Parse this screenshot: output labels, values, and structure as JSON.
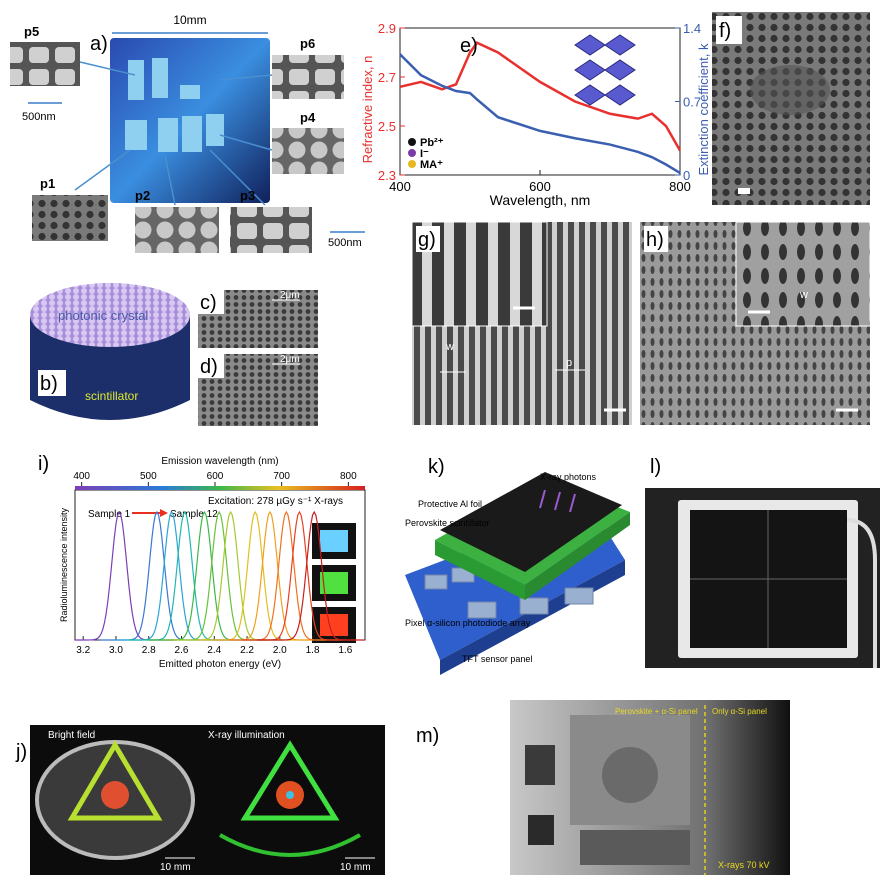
{
  "figure": {
    "a": {
      "label": "a)",
      "size": "10mm",
      "insets": [
        "p5",
        "p6",
        "p4",
        "p1",
        "p2",
        "p3"
      ],
      "scale_left": "500nm",
      "scale_right": "500nm"
    },
    "b": {
      "label": "b)",
      "top": "photonic crystal",
      "bottom": "scintillator"
    },
    "c": {
      "label": "c)",
      "scale": "2μm"
    },
    "d": {
      "label": "d)",
      "scale": "2μm"
    },
    "f": {
      "label": "f)"
    },
    "g": {
      "label": "g)",
      "marks": [
        "w",
        "p"
      ]
    },
    "h": {
      "label": "h)",
      "marks": [
        "w"
      ]
    },
    "j": {
      "label": "j)",
      "left": "Bright field",
      "right": "X-ray illumination",
      "scale_left": "10 mm",
      "scale_right": "10 mm"
    },
    "k": {
      "label": "k)",
      "photons": "X-ray photons",
      "foil": "Protective Al foil",
      "scintillator": "Perovskite scintillator",
      "array": "Pixel α-silicon photodiode array",
      "panel": "TFT sensor panel"
    },
    "l": {
      "label": "l)"
    },
    "m": {
      "label": "m)",
      "left": "Perovskite + α-Si panel",
      "right": "Only α-Si panel",
      "source": "X-rays 70 kV"
    }
  },
  "chart_data": [
    {
      "type": "line",
      "label": "e)",
      "xlabel": "Wavelength, nm",
      "ylabel": "Refractive index, n",
      "y2label": "Extinction coefficient, k",
      "x": [
        400,
        430,
        460,
        480,
        500,
        510,
        540,
        600,
        650,
        700,
        740,
        760,
        780,
        800
      ],
      "xlim": [
        400,
        800
      ],
      "xticks": [
        400,
        600,
        800
      ],
      "ylim": [
        2.3,
        2.9
      ],
      "yticks": [
        2.3,
        2.5,
        2.7,
        2.9
      ],
      "y2lim": [
        0,
        1.4
      ],
      "y2ticks": [
        0,
        0.7,
        1.4
      ],
      "series": [
        {
          "color": "#e8302f",
          "values": [
            2.66,
            2.68,
            2.65,
            2.67,
            2.8,
            2.84,
            2.8,
            2.68,
            2.6,
            2.55,
            2.53,
            2.55,
            2.5,
            2.4
          ]
        },
        {
          "color": "#3a5fb0",
          "axis": "y2",
          "values": [
            1.15,
            0.95,
            0.85,
            0.8,
            0.78,
            0.72,
            0.55,
            0.42,
            0.35,
            0.29,
            0.22,
            0.17,
            0.1,
            0.02
          ]
        }
      ],
      "legend": [
        {
          "label": "Pb²⁺",
          "color": "#111111"
        },
        {
          "label": "I⁻",
          "color": "#7a3aa8"
        },
        {
          "label": "MA⁺",
          "color": "#e8b820"
        }
      ]
    },
    {
      "type": "spectra",
      "label": "i)",
      "xlabel": "Emitted photon energy (eV)",
      "ylabel": "Radioluminescence intensity",
      "x2label": "Emission wavelength (nm)",
      "xlim": [
        3.25,
        1.48
      ],
      "xticks": [
        3.2,
        {
          "value": 3.0,
          "label": "3.0"
        },
        2.8,
        2.6,
        2.4,
        2.2,
        {
          "value": 2.0,
          "label": "2.0"
        },
        1.8,
        1.6
      ],
      "x2lim": [
        390,
        825
      ],
      "x2ticks": [
        400,
        500,
        600,
        700,
        800
      ],
      "annotation": "Excitation: 278 µGy s⁻¹ X-rays",
      "start": "Sample 1",
      "end": "Sample 12",
      "peaks": [
        2.98,
        2.75,
        2.66,
        2.58,
        2.46,
        2.37,
        2.3,
        2.15,
        2.06,
        1.96,
        1.88,
        1.79
      ],
      "colors": [
        "#7b3fb5",
        "#3a78d0",
        "#2aa6d8",
        "#20b8b0",
        "#3cb84a",
        "#66c23a",
        "#a8c830",
        "#e0c020",
        "#f0a020",
        "#f07020",
        "#e84020",
        "#c81e1e"
      ]
    }
  ]
}
